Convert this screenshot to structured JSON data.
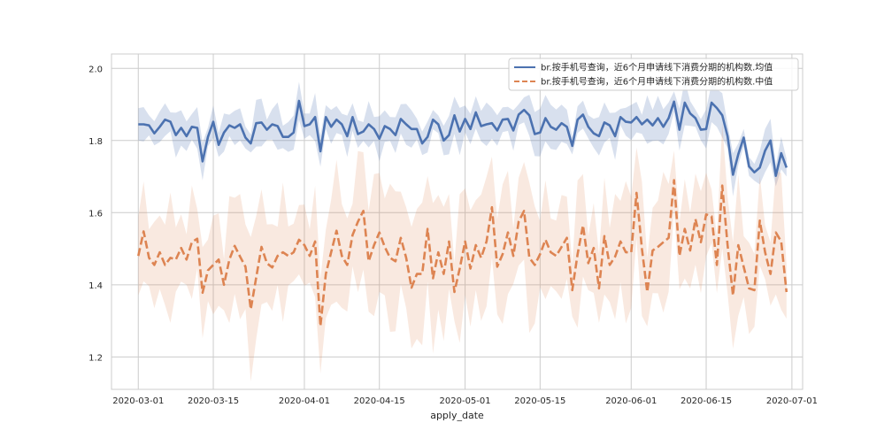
{
  "chart_data": {
    "type": "line",
    "xlabel": "apply_date",
    "ylabel": "",
    "title": "",
    "xlim": [
      "2020-02-25",
      "2020-07-03"
    ],
    "ylim": [
      1.11,
      2.04
    ],
    "grid": true,
    "legend_position": "top-right",
    "x_ticks": [
      "2020-03-01",
      "2020-03-15",
      "2020-04-01",
      "2020-04-15",
      "2020-05-01",
      "2020-05-15",
      "2020-06-01",
      "2020-06-15",
      "2020-07-01"
    ],
    "y_ticks": [
      1.2,
      1.4,
      1.6,
      1.8,
      2.0
    ],
    "y_tick_labels": [
      "1.2",
      "1.4",
      "1.6",
      "1.8",
      "2.0"
    ],
    "colors": {
      "mean": "#4c72b0",
      "median": "#dd8452",
      "grid": "#cccccc",
      "frame": "#cccccc"
    },
    "series": [
      {
        "name": "br.按手机号查询，近6个月申请线下消费分期的机构数.均值",
        "style": "solid",
        "points": [
          [
            "2020-03-01",
            1.845
          ],
          [
            "2020-03-02",
            1.845
          ],
          [
            "2020-03-03",
            1.842
          ],
          [
            "2020-03-04",
            1.82
          ],
          [
            "2020-03-05",
            1.838
          ],
          [
            "2020-03-06",
            1.858
          ],
          [
            "2020-03-07",
            1.852
          ],
          [
            "2020-03-08",
            1.815
          ],
          [
            "2020-03-09",
            1.835
          ],
          [
            "2020-03-10",
            1.812
          ],
          [
            "2020-03-11",
            1.838
          ],
          [
            "2020-03-12",
            1.835
          ],
          [
            "2020-03-13",
            1.742
          ],
          [
            "2020-03-14",
            1.81
          ],
          [
            "2020-03-15",
            1.852
          ],
          [
            "2020-03-16",
            1.788
          ],
          [
            "2020-03-17",
            1.822
          ],
          [
            "2020-03-18",
            1.842
          ],
          [
            "2020-03-19",
            1.835
          ],
          [
            "2020-03-20",
            1.845
          ],
          [
            "2020-03-21",
            1.808
          ],
          [
            "2020-03-22",
            1.792
          ],
          [
            "2020-03-23",
            1.848
          ],
          [
            "2020-03-24",
            1.85
          ],
          [
            "2020-03-25",
            1.83
          ],
          [
            "2020-03-26",
            1.845
          ],
          [
            "2020-03-27",
            1.84
          ],
          [
            "2020-03-28",
            1.81
          ],
          [
            "2020-03-29",
            1.81
          ],
          [
            "2020-03-30",
            1.822
          ],
          [
            "2020-03-31",
            1.91
          ],
          [
            "2020-04-01",
            1.84
          ],
          [
            "2020-04-02",
            1.845
          ],
          [
            "2020-04-03",
            1.865
          ],
          [
            "2020-04-04",
            1.77
          ],
          [
            "2020-04-05",
            1.865
          ],
          [
            "2020-04-06",
            1.838
          ],
          [
            "2020-04-07",
            1.858
          ],
          [
            "2020-04-08",
            1.845
          ],
          [
            "2020-04-09",
            1.812
          ],
          [
            "2020-04-10",
            1.865
          ],
          [
            "2020-04-11",
            1.818
          ],
          [
            "2020-04-12",
            1.825
          ],
          [
            "2020-04-13",
            1.845
          ],
          [
            "2020-04-14",
            1.832
          ],
          [
            "2020-04-15",
            1.805
          ],
          [
            "2020-04-16",
            1.84
          ],
          [
            "2020-04-17",
            1.832
          ],
          [
            "2020-04-18",
            1.815
          ],
          [
            "2020-04-19",
            1.86
          ],
          [
            "2020-04-20",
            1.845
          ],
          [
            "2020-04-21",
            1.832
          ],
          [
            "2020-04-22",
            1.832
          ],
          [
            "2020-04-23",
            1.792
          ],
          [
            "2020-04-24",
            1.81
          ],
          [
            "2020-04-25",
            1.858
          ],
          [
            "2020-04-26",
            1.845
          ],
          [
            "2020-04-27",
            1.8
          ],
          [
            "2020-04-28",
            1.815
          ],
          [
            "2020-04-29",
            1.87
          ],
          [
            "2020-04-30",
            1.825
          ],
          [
            "2020-05-01",
            1.86
          ],
          [
            "2020-05-02",
            1.832
          ],
          [
            "2020-05-03",
            1.878
          ],
          [
            "2020-05-04",
            1.84
          ],
          [
            "2020-05-05",
            1.845
          ],
          [
            "2020-05-06",
            1.848
          ],
          [
            "2020-05-07",
            1.828
          ],
          [
            "2020-05-08",
            1.858
          ],
          [
            "2020-05-09",
            1.86
          ],
          [
            "2020-05-10",
            1.828
          ],
          [
            "2020-05-11",
            1.872
          ],
          [
            "2020-05-12",
            1.885
          ],
          [
            "2020-05-13",
            1.87
          ],
          [
            "2020-05-14",
            1.818
          ],
          [
            "2020-05-15",
            1.822
          ],
          [
            "2020-05-16",
            1.862
          ],
          [
            "2020-05-17",
            1.838
          ],
          [
            "2020-05-18",
            1.83
          ],
          [
            "2020-05-19",
            1.848
          ],
          [
            "2020-05-20",
            1.838
          ],
          [
            "2020-05-21",
            1.785
          ],
          [
            "2020-05-22",
            1.858
          ],
          [
            "2020-05-23",
            1.872
          ],
          [
            "2020-05-24",
            1.838
          ],
          [
            "2020-05-25",
            1.82
          ],
          [
            "2020-05-26",
            1.812
          ],
          [
            "2020-05-27",
            1.85
          ],
          [
            "2020-05-28",
            1.842
          ],
          [
            "2020-05-29",
            1.812
          ],
          [
            "2020-05-30",
            1.865
          ],
          [
            "2020-05-31",
            1.852
          ],
          [
            "2020-06-01",
            1.85
          ],
          [
            "2020-06-02",
            1.865
          ],
          [
            "2020-06-03",
            1.845
          ],
          [
            "2020-06-04",
            1.858
          ],
          [
            "2020-06-05",
            1.842
          ],
          [
            "2020-06-06",
            1.862
          ],
          [
            "2020-06-07",
            1.838
          ],
          [
            "2020-06-08",
            1.862
          ],
          [
            "2020-06-09",
            1.908
          ],
          [
            "2020-06-10",
            1.83
          ],
          [
            "2020-06-11",
            1.905
          ],
          [
            "2020-06-12",
            1.875
          ],
          [
            "2020-06-13",
            1.862
          ],
          [
            "2020-06-14",
            1.83
          ],
          [
            "2020-06-15",
            1.832
          ],
          [
            "2020-06-16",
            1.905
          ],
          [
            "2020-06-17",
            1.89
          ],
          [
            "2020-06-18",
            1.87
          ],
          [
            "2020-06-19",
            1.812
          ],
          [
            "2020-06-20",
            1.705
          ],
          [
            "2020-06-21",
            1.762
          ],
          [
            "2020-06-22",
            1.808
          ],
          [
            "2020-06-23",
            1.728
          ],
          [
            "2020-06-24",
            1.712
          ],
          [
            "2020-06-25",
            1.725
          ],
          [
            "2020-06-26",
            1.772
          ],
          [
            "2020-06-27",
            1.8
          ],
          [
            "2020-06-28",
            1.702
          ],
          [
            "2020-06-29",
            1.765
          ],
          [
            "2020-06-30",
            1.725
          ]
        ],
        "band_halfwidth": 0.045
      },
      {
        "name": "br.按手机号查询，近6个月申请线下消费分期的机构数.中值",
        "style": "dashed",
        "points": [
          [
            "2020-03-01",
            1.48
          ],
          [
            "2020-03-02",
            1.548
          ],
          [
            "2020-03-03",
            1.475
          ],
          [
            "2020-03-04",
            1.455
          ],
          [
            "2020-03-05",
            1.49
          ],
          [
            "2020-03-06",
            1.455
          ],
          [
            "2020-03-07",
            1.475
          ],
          [
            "2020-03-08",
            1.47
          ],
          [
            "2020-03-09",
            1.502
          ],
          [
            "2020-03-10",
            1.47
          ],
          [
            "2020-03-11",
            1.518
          ],
          [
            "2020-03-12",
            1.528
          ],
          [
            "2020-03-13",
            1.378
          ],
          [
            "2020-03-14",
            1.44
          ],
          [
            "2020-03-15",
            1.455
          ],
          [
            "2020-03-16",
            1.47
          ],
          [
            "2020-03-17",
            1.4
          ],
          [
            "2020-03-18",
            1.47
          ],
          [
            "2020-03-19",
            1.508
          ],
          [
            "2020-03-20",
            1.478
          ],
          [
            "2020-03-21",
            1.45
          ],
          [
            "2020-03-22",
            1.332
          ],
          [
            "2020-03-23",
            1.42
          ],
          [
            "2020-03-24",
            1.505
          ],
          [
            "2020-03-25",
            1.46
          ],
          [
            "2020-03-26",
            1.448
          ],
          [
            "2020-03-27",
            1.48
          ],
          [
            "2020-03-28",
            1.49
          ],
          [
            "2020-03-29",
            1.48
          ],
          [
            "2020-03-30",
            1.49
          ],
          [
            "2020-03-31",
            1.525
          ],
          [
            "2020-04-01",
            1.51
          ],
          [
            "2020-04-02",
            1.48
          ],
          [
            "2020-04-03",
            1.52
          ],
          [
            "2020-04-04",
            1.285
          ],
          [
            "2020-04-05",
            1.43
          ],
          [
            "2020-04-06",
            1.49
          ],
          [
            "2020-04-07",
            1.55
          ],
          [
            "2020-04-08",
            1.48
          ],
          [
            "2020-04-09",
            1.455
          ],
          [
            "2020-04-10",
            1.538
          ],
          [
            "2020-04-11",
            1.575
          ],
          [
            "2020-04-12",
            1.605
          ],
          [
            "2020-04-13",
            1.465
          ],
          [
            "2020-04-14",
            1.51
          ],
          [
            "2020-04-15",
            1.545
          ],
          [
            "2020-04-16",
            1.505
          ],
          [
            "2020-04-17",
            1.475
          ],
          [
            "2020-04-18",
            1.465
          ],
          [
            "2020-04-19",
            1.53
          ],
          [
            "2020-04-20",
            1.475
          ],
          [
            "2020-04-21",
            1.392
          ],
          [
            "2020-04-22",
            1.43
          ],
          [
            "2020-04-23",
            1.43
          ],
          [
            "2020-04-24",
            1.555
          ],
          [
            "2020-04-25",
            1.418
          ],
          [
            "2020-04-26",
            1.49
          ],
          [
            "2020-04-27",
            1.43
          ],
          [
            "2020-04-28",
            1.52
          ],
          [
            "2020-04-29",
            1.38
          ],
          [
            "2020-04-30",
            1.445
          ],
          [
            "2020-05-01",
            1.52
          ],
          [
            "2020-05-02",
            1.445
          ],
          [
            "2020-05-03",
            1.51
          ],
          [
            "2020-05-04",
            1.475
          ],
          [
            "2020-05-05",
            1.52
          ],
          [
            "2020-05-06",
            1.615
          ],
          [
            "2020-05-07",
            1.45
          ],
          [
            "2020-05-08",
            1.485
          ],
          [
            "2020-05-09",
            1.545
          ],
          [
            "2020-05-10",
            1.48
          ],
          [
            "2020-05-11",
            1.575
          ],
          [
            "2020-05-12",
            1.605
          ],
          [
            "2020-05-13",
            1.475
          ],
          [
            "2020-05-14",
            1.455
          ],
          [
            "2020-05-15",
            1.485
          ],
          [
            "2020-05-16",
            1.525
          ],
          [
            "2020-05-17",
            1.49
          ],
          [
            "2020-05-18",
            1.48
          ],
          [
            "2020-05-19",
            1.505
          ],
          [
            "2020-05-20",
            1.53
          ],
          [
            "2020-05-21",
            1.385
          ],
          [
            "2020-05-22",
            1.485
          ],
          [
            "2020-05-23",
            1.565
          ],
          [
            "2020-05-24",
            1.46
          ],
          [
            "2020-05-25",
            1.502
          ],
          [
            "2020-05-26",
            1.39
          ],
          [
            "2020-05-27",
            1.535
          ],
          [
            "2020-05-28",
            1.455
          ],
          [
            "2020-05-29",
            1.478
          ],
          [
            "2020-05-30",
            1.52
          ],
          [
            "2020-05-31",
            1.49
          ],
          [
            "2020-06-01",
            1.49
          ],
          [
            "2020-06-02",
            1.655
          ],
          [
            "2020-06-03",
            1.5
          ],
          [
            "2020-06-04",
            1.38
          ],
          [
            "2020-06-05",
            1.495
          ],
          [
            "2020-06-06",
            1.505
          ],
          [
            "2020-06-07",
            1.518
          ],
          [
            "2020-06-08",
            1.53
          ],
          [
            "2020-06-09",
            1.69
          ],
          [
            "2020-06-10",
            1.48
          ],
          [
            "2020-06-11",
            1.555
          ],
          [
            "2020-06-12",
            1.495
          ],
          [
            "2020-06-13",
            1.582
          ],
          [
            "2020-06-14",
            1.518
          ],
          [
            "2020-06-15",
            1.595
          ],
          [
            "2020-06-16",
            1.59
          ],
          [
            "2020-06-17",
            1.455
          ],
          [
            "2020-06-18",
            1.675
          ],
          [
            "2020-06-19",
            1.51
          ],
          [
            "2020-06-20",
            1.37
          ],
          [
            "2020-06-21",
            1.51
          ],
          [
            "2020-06-22",
            1.45
          ],
          [
            "2020-06-23",
            1.39
          ],
          [
            "2020-06-24",
            1.385
          ],
          [
            "2020-06-25",
            1.578
          ],
          [
            "2020-06-26",
            1.49
          ],
          [
            "2020-06-27",
            1.43
          ],
          [
            "2020-06-28",
            1.545
          ],
          [
            "2020-06-29",
            1.52
          ],
          [
            "2020-06-30",
            1.38
          ]
        ],
        "band_halfwidth": 0.14
      }
    ]
  }
}
